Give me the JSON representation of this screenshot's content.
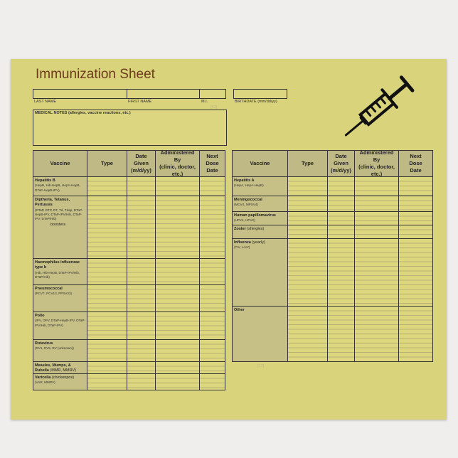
{
  "header": {
    "title": "Immunization Sheet"
  },
  "fields": {
    "last_name": "LAST NAME",
    "first_name": "FIRST NAME",
    "middle_initial": "M.I.",
    "birthdate": "BIRTHDATE (mm/dd/yy)",
    "medical_notes": "MEDICAL NOTES (allergies, vaccine reactions, etc.)"
  },
  "marks": [
    "[42]",
    "[17]"
  ],
  "tables": [
    {
      "columns": [
        [
          "Vaccine"
        ],
        [
          "Type"
        ],
        [
          "Date",
          "Given",
          "(m/d/yy)"
        ],
        [
          "Administered",
          "By",
          "(clinic, doctor,",
          "etc.)"
        ],
        [
          "Next",
          "Dose",
          "Date"
        ]
      ],
      "rows": [
        {
          "name": "Hepatitis B",
          "detail": "(HepB, Hib-HepB, HepA-HepB, DTaP-HepB-IPV)"
        },
        {
          "name": "Diptheria, Tetanus, Pertussis",
          "detail": "(DTaP, DTP, DT, Td, Tdap, DTaP-HepB-IPV, DTaP-IPV/Hib, DTaP-IPV, DTaP/Hib)",
          "extra": "boosters"
        },
        {
          "name": "Haemophilus influenzae type b",
          "detail": "(Hib, Hib-HepB, DTaP-IPV/Hib, DTaP/Hib)"
        },
        {
          "name": "Pneumococcal",
          "detail": "(PCV7, PCV13, PPSV23)"
        },
        {
          "name": "Polio",
          "detail": "(IPV, OPV, DTaP-HepB-IPV, DTaP-IPV/Hib, DTaP-IPV)"
        },
        {
          "name": "Rotavirus",
          "detail": "(RV1, RV5, RV (unknown))"
        },
        {
          "name": "Measles, Mumps, & Rubella",
          "note": "(MMR, MMRV)"
        },
        {
          "name": "Varicella",
          "note": "(chickenpox)",
          "detail": "(VAR, MMRV)"
        }
      ]
    },
    {
      "columns": [
        [
          "Vaccine"
        ],
        [
          "Type"
        ],
        [
          "Date",
          "Given",
          "(m/d/yy)"
        ],
        [
          "Administered",
          "By",
          "(clinic, doctor,",
          "etc.)"
        ],
        [
          "Next",
          "Dose",
          "Date"
        ]
      ],
      "rows": [
        {
          "name": "Hepatitis A",
          "detail": "(HepA, HepA-HepB)"
        },
        {
          "name": "Meningococcal",
          "detail": "(MCV4, MPSV4)"
        },
        {
          "name": "Human papillomavirus",
          "detail": "(HPV4, HPV2)"
        },
        {
          "name": "Zoster",
          "note": "(shingles)"
        },
        {
          "name": "Influenza",
          "note": "(yearly)",
          "detail": "(TIV, LAIV)"
        },
        {
          "name": "Other"
        }
      ]
    }
  ]
}
